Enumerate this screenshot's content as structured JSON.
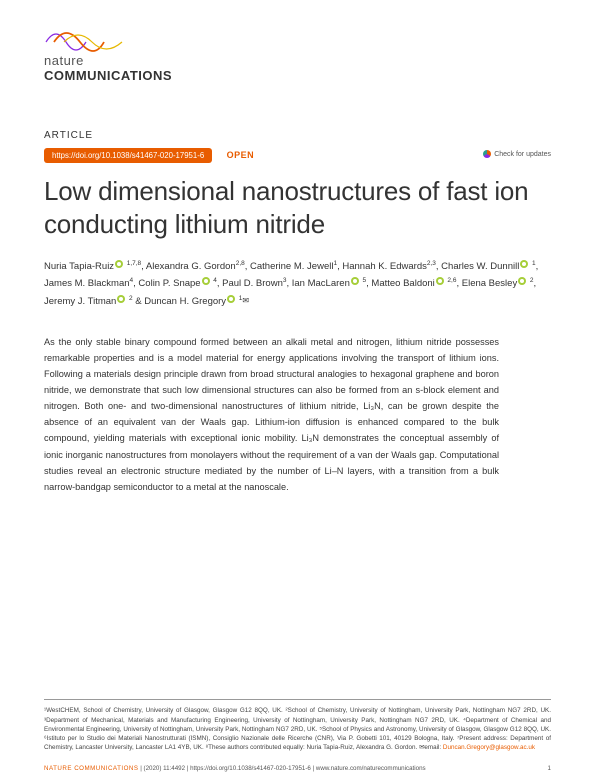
{
  "brand": {
    "line1": "nature",
    "line2": "COMMUNICATIONS",
    "wave_colors": [
      "#8a2be2",
      "#e85c00",
      "#e6b800"
    ]
  },
  "article_label": "ARTICLE",
  "doi_url": "https://doi.org/10.1038/s41467-020-17951-6",
  "open_label": "OPEN",
  "check_updates": "Check for updates",
  "title": "Low dimensional nanostructures of fast ion conducting lithium nitride",
  "authors_html": "Nuria Tapia-Ruiz|orcid| |sup|1,7,8|/sup|, Alexandra G. Gordon|sup|2,8|/sup|, Catherine M. Jewell|sup|1|/sup|, Hannah K. Edwards|sup|2,3|/sup|, Charles W. Dunnill|orcid| |sup|1|/sup|, James M. Blackman|sup|4|/sup|, Colin P. Snape|orcid| |sup|4|/sup|, Paul D. Brown|sup|3|/sup|, Ian MacLaren|orcid| |sup|5|/sup|, Matteo Baldoni|orcid| |sup|2,6|/sup|, Elena Besley|orcid| |sup|2|/sup|, Jeremy J. Titman|orcid| |sup|2|/sup| & Duncan H. Gregory|orcid| |sup|1|/sup||env|",
  "abstract": "As the only stable binary compound formed between an alkali metal and nitrogen, lithium nitride possesses remarkable properties and is a model material for energy applications involving the transport of lithium ions. Following a materials design principle drawn from broad structural analogies to hexagonal graphene and boron nitride, we demonstrate that such low dimensional structures can also be formed from an s-block element and nitrogen. Both one- and two-dimensional nanostructures of lithium nitride, Li₃N, can be grown despite the absence of an equivalent van der Waals gap. Lithium-ion diffusion is enhanced compared to the bulk compound, yielding materials with exceptional ionic mobility. Li₃N demonstrates the conceptual assembly of ionic inorganic nanostructures from monolayers without the requirement of a van der Waals gap. Computational studies reveal an electronic structure mediated by the number of Li–N layers, with a transition from a bulk narrow-bandgap semiconductor to a metal at the nanoscale.",
  "affiliations": "¹WestCHEM, School of Chemistry, University of Glasgow, Glasgow G12 8QQ, UK. ²School of Chemistry, University of Nottingham, University Park, Nottingham NG7 2RD, UK. ³Department of Mechanical, Materials and Manufacturing Engineering, University of Nottingham, University Park, Nottingham NG7 2RD, UK. ⁴Department of Chemical and Environmental Engineering, University of Nottingham, University Park, Nottingham NG7 2RD, UK. ⁵School of Physics and Astronomy, University of Glasgow, Glasgow G12 8QQ, UK. ⁶Istituto per lo Studio dei Materiali Nanostrutturati (ISMN), Consiglio Nazionale delle Ricerche (CNR), Via P. Gobetti 101, 40129 Bologna, Italy. ⁷Present address: Department of Chemistry, Lancaster University, Lancaster LA1 4YB, UK. ⁸These authors contributed equally: Nuria Tapia-Ruiz, Alexandra G. Gordon. ",
  "affiliations_email_label": "✉email: ",
  "affiliations_email": "Duncan.Gregory@glasgow.ac.uk",
  "footer": {
    "journal": "NATURE COMMUNICATIONS",
    "citation": " |   (2020) 11:4492 | https://doi.org/10.1038/s41467-020-17951-6 | www.nature.com/naturecommunications",
    "page": "1"
  },
  "colors": {
    "accent": "#e85c00",
    "orcid": "#a6ce39"
  }
}
